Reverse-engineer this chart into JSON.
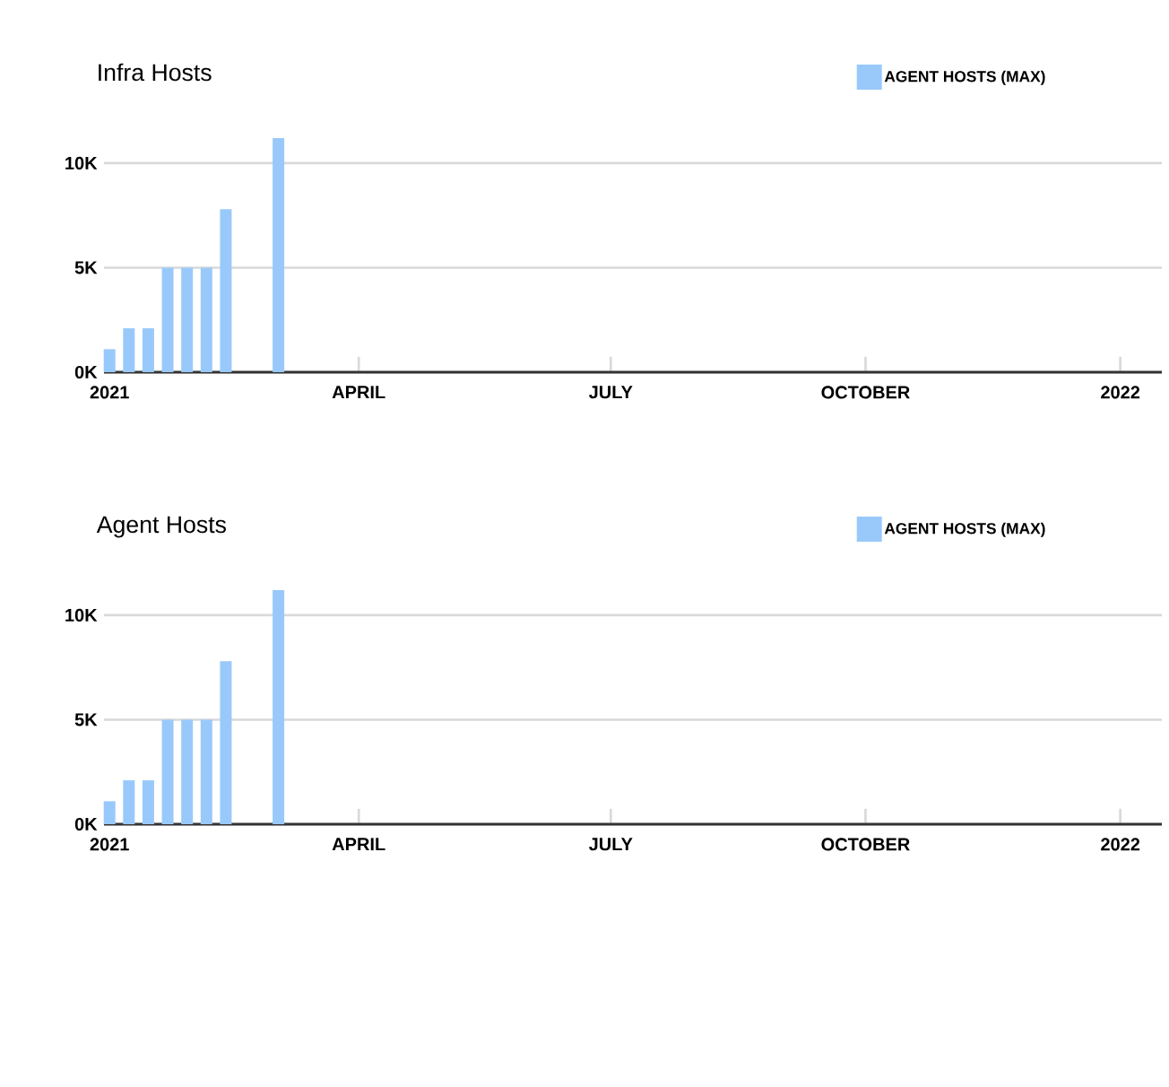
{
  "chart_data": [
    {
      "type": "bar",
      "title": "Infra Hosts",
      "x": [
        "2021-01-01",
        "2021-01-08",
        "2021-01-15",
        "2021-01-22",
        "2021-01-29",
        "2021-02-05",
        "2021-02-12",
        "2021-03-03"
      ],
      "series": [
        {
          "name": "AGENT HOSTS (MAX)",
          "color": "#99c9fb",
          "values": [
            1100,
            2100,
            2100,
            5000,
            5000,
            5000,
            7800,
            11200
          ]
        }
      ],
      "xlim": [
        "2020-12-30",
        "2022-01-16"
      ],
      "xticks": [
        {
          "value": "2021-01-01",
          "label": "2021"
        },
        {
          "value": "2021-04-01",
          "label": "APRIL"
        },
        {
          "value": "2021-07-01",
          "label": "JULY"
        },
        {
          "value": "2021-10-01",
          "label": "OCTOBER"
        },
        {
          "value": "2022-01-01",
          "label": "2022"
        }
      ],
      "ylim": [
        0,
        11200
      ],
      "yticks": [
        {
          "value": 0,
          "label": "0K"
        },
        {
          "value": 5000,
          "label": "5K"
        },
        {
          "value": 10000,
          "label": "10K"
        }
      ],
      "grid": "y",
      "legend": "top right"
    },
    {
      "type": "bar",
      "title": "Agent Hosts",
      "x": [
        "2021-01-01",
        "2021-01-08",
        "2021-01-15",
        "2021-01-22",
        "2021-01-29",
        "2021-02-05",
        "2021-02-12",
        "2021-03-03"
      ],
      "series": [
        {
          "name": "AGENT HOSTS (MAX)",
          "color": "#99c9fb",
          "values": [
            1100,
            2100,
            2100,
            5000,
            5000,
            5000,
            7800,
            11200
          ]
        }
      ],
      "xlim": [
        "2020-12-30",
        "2022-01-16"
      ],
      "xticks": [
        {
          "value": "2021-01-01",
          "label": "2021"
        },
        {
          "value": "2021-04-01",
          "label": "APRIL"
        },
        {
          "value": "2021-07-01",
          "label": "JULY"
        },
        {
          "value": "2021-10-01",
          "label": "OCTOBER"
        },
        {
          "value": "2022-01-01",
          "label": "2022"
        }
      ],
      "ylim": [
        0,
        11200
      ],
      "yticks": [
        {
          "value": 0,
          "label": "0K"
        },
        {
          "value": 5000,
          "label": "5K"
        },
        {
          "value": 10000,
          "label": "10K"
        }
      ],
      "grid": "y",
      "legend": "top right"
    }
  ]
}
